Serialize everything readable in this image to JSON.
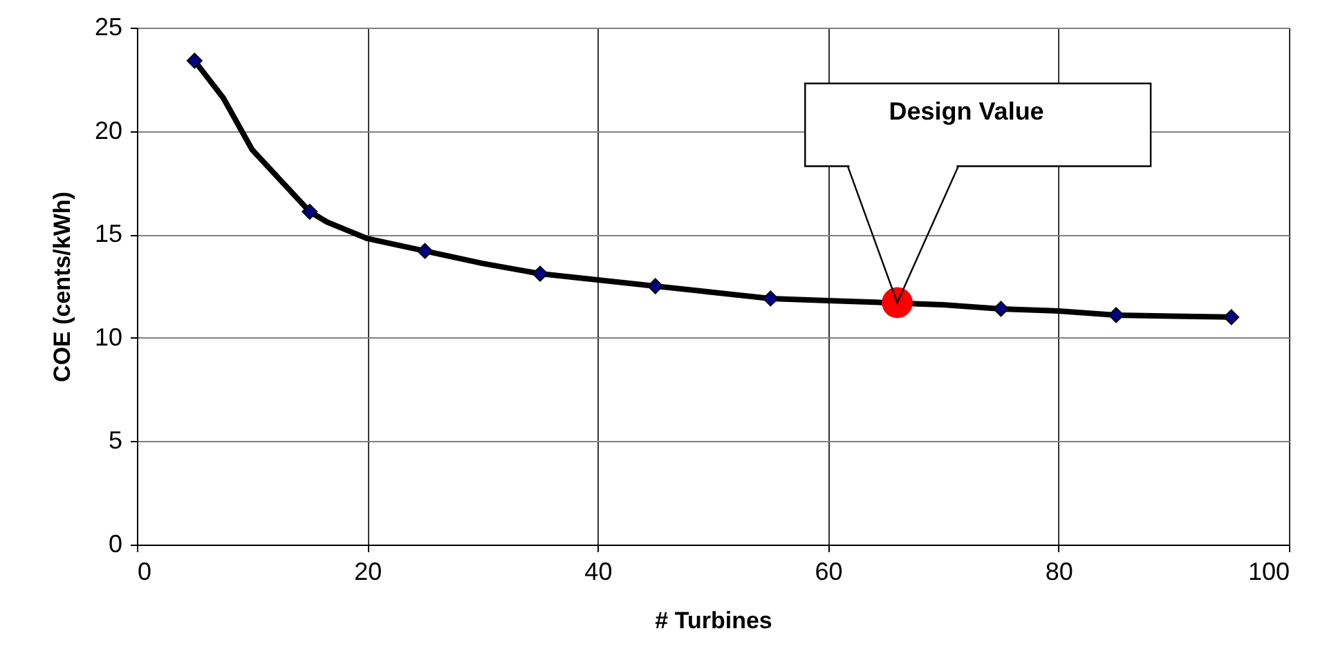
{
  "chart_data": {
    "type": "line",
    "xlabel": "# Turbines",
    "ylabel": "COE (cents/kWh)",
    "xlim": [
      0,
      100
    ],
    "xticks": [
      0,
      20,
      40,
      60,
      80,
      100
    ],
    "ylim": [
      0,
      25
    ],
    "yticks": [
      0,
      5,
      10,
      15,
      20,
      25
    ],
    "grid": true,
    "series": [
      {
        "color": "#000000",
        "marker": "none",
        "line_style": "solid",
        "x": [
          5,
          7.5,
          10,
          15,
          16.5,
          20,
          25,
          30,
          35,
          40,
          45,
          50,
          55,
          60,
          65,
          70,
          75,
          80,
          85,
          90,
          95
        ],
        "values": [
          23.4,
          21.6,
          19.1,
          16.1,
          15.6,
          14.8,
          14.2,
          13.6,
          13.1,
          12.8,
          12.5,
          12.2,
          11.9,
          11.8,
          11.7,
          11.6,
          11.4,
          11.3,
          11.1,
          11.05,
          11.0
        ]
      },
      {
        "type": "scatter",
        "color": "#000080",
        "marker": "diamond",
        "x": [
          5,
          15,
          25,
          35,
          45,
          55,
          75,
          85,
          95
        ],
        "values": [
          23.4,
          16.1,
          14.2,
          13.1,
          12.5,
          11.9,
          11.4,
          11.1,
          11.0
        ]
      },
      {
        "type": "scatter",
        "color": "#ff0000",
        "marker": "circle",
        "x": [
          66
        ],
        "values": [
          11.7
        ]
      }
    ],
    "annotations": [
      "Design Value"
    ]
  }
}
